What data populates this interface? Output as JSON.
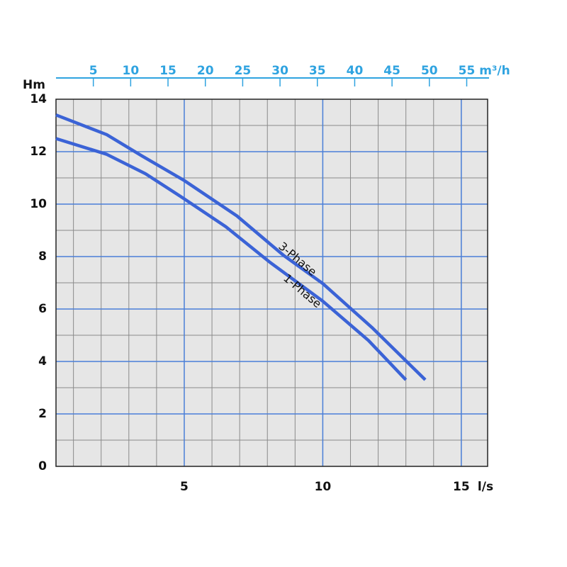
{
  "chart_data": {
    "type": "line",
    "y_label": "Hm",
    "x_label": "l/s",
    "x2_label": "m³/h",
    "xlim": [
      0.37,
      15.95
    ],
    "xticks": [
      5,
      10,
      15
    ],
    "x_minor_step": 1,
    "x2lim": [
      0,
      57.8
    ],
    "x2ticks": [
      5,
      10,
      15,
      20,
      25,
      30,
      35,
      40,
      45,
      50,
      55
    ],
    "ylim": [
      0,
      14
    ],
    "yticks": [
      0,
      2,
      4,
      6,
      8,
      10,
      12,
      14
    ],
    "y_minor_step": 1,
    "grid": true,
    "series": [
      {
        "name": "3-Phase",
        "color": "#3b63d6",
        "x": [
          0.37,
          2.2,
          3.47,
          5,
          6.9,
          8.58,
          10,
          11.77,
          13.7
        ],
        "values": [
          13.4,
          12.65,
          11.84,
          10.9,
          9.55,
          8.05,
          6.97,
          5.3,
          3.3
        ]
      },
      {
        "name": "1-Phase",
        "color": "#3b63d6",
        "x": [
          0.37,
          2.2,
          3.6,
          5,
          6.5,
          8.07,
          10,
          11.65,
          13.0
        ],
        "values": [
          12.5,
          11.9,
          11.16,
          10.2,
          9.14,
          7.8,
          6.3,
          4.8,
          3.3
        ]
      }
    ]
  }
}
